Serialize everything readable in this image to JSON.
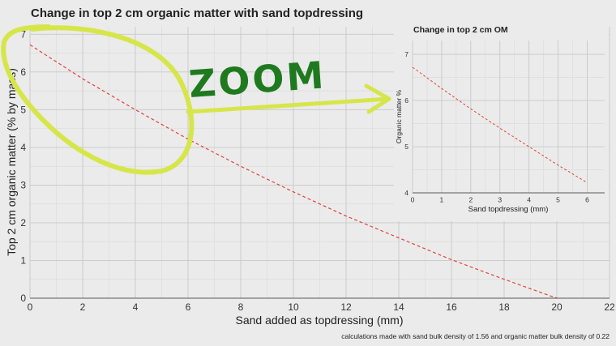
{
  "chart_data": [
    {
      "type": "line",
      "title": "Change in top 2 cm organic matter with sand topdressing",
      "xlabel": "Sand added as topdressing (mm)",
      "ylabel": "Top 2 cm organic matter (% by mass)",
      "xlim": [
        0,
        22
      ],
      "ylim": [
        0,
        7.2
      ],
      "xticks": [
        0,
        2,
        4,
        6,
        8,
        10,
        12,
        14,
        16,
        18,
        20,
        22
      ],
      "yticks": [
        0,
        1,
        2,
        3,
        4,
        5,
        6,
        7
      ],
      "grid": true,
      "line_style": "dashed",
      "series": [
        {
          "color": "#e0443a",
          "x": [
            0,
            2,
            4,
            6,
            8,
            10,
            12,
            14,
            16,
            18,
            20
          ],
          "y": [
            6.72,
            5.82,
            5.0,
            4.22,
            3.5,
            2.82,
            2.18,
            1.6,
            1.02,
            0.5,
            0.0
          ]
        }
      ],
      "caption": "calculations made with sand bulk density of 1.56 and organic matter bulk density of 0.22"
    },
    {
      "type": "line",
      "title": "Change in top 2 cm OM",
      "xlabel": "Sand topdressing (mm)",
      "ylabel": "Organic matter %",
      "xlim": [
        0,
        6.6
      ],
      "ylim": [
        4,
        7.3
      ],
      "xticks": [
        0,
        1,
        2,
        3,
        4,
        5,
        6
      ],
      "yticks": [
        4,
        5,
        6,
        7
      ],
      "grid": true,
      "line_style": "dashed",
      "series": [
        {
          "color": "#e0443a",
          "x": [
            0,
            1,
            2,
            3,
            4,
            5,
            6
          ],
          "y": [
            6.72,
            6.26,
            5.82,
            5.4,
            5.0,
            4.6,
            4.22
          ]
        }
      ]
    }
  ],
  "annotation": {
    "text": "ZOOM",
    "highlight_color": "#d6e64a",
    "text_color": "#1f7a1f"
  }
}
